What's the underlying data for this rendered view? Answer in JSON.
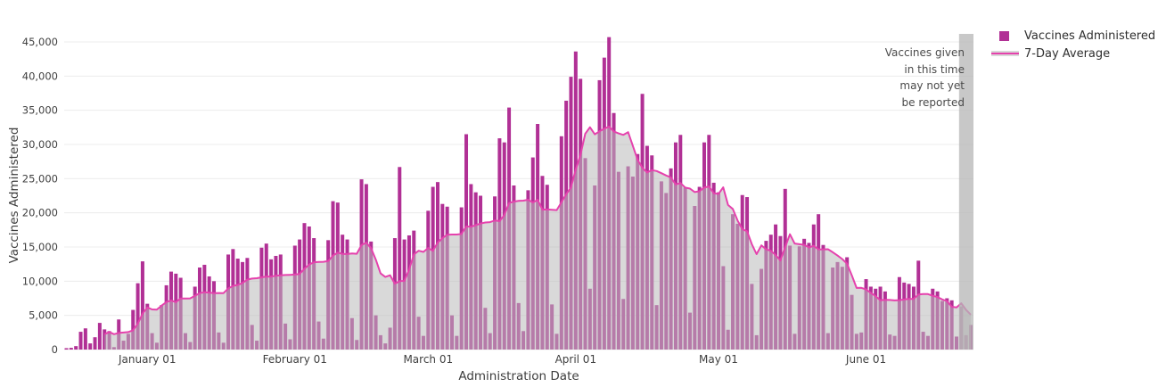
{
  "axes": {
    "x_title": "Administration Date",
    "y_title": "Vaccines Administered"
  },
  "legend": {
    "items": [
      {
        "label": "Vaccines Administered",
        "swatch": "square"
      },
      {
        "label": "7-Day Average",
        "swatch": "line"
      }
    ]
  },
  "annotation": {
    "lines": [
      "Vaccines given",
      "in this time",
      "may not yet",
      "be reported"
    ]
  },
  "chart_data": {
    "type": "bar",
    "title": "",
    "xlabel": "Administration Date",
    "ylabel": "Vaccines Administered",
    "ylim": [
      0,
      45000
    ],
    "grid": "horizontal",
    "legend_position": "top-right",
    "start_date": "2020-12-15",
    "end_date": "2021-06-23",
    "series": [
      {
        "name": "Vaccines Administered",
        "type": "bar",
        "color": "#b13095",
        "values": [
          200,
          250,
          500,
          2600,
          3100,
          900,
          1800,
          3900,
          2950,
          2700,
          350,
          4400,
          1300,
          2300,
          5800,
          9700,
          12900,
          6700,
          2400,
          1000,
          6500,
          9400,
          11400,
          11100,
          10500,
          2400,
          1100,
          9200,
          12000,
          12400,
          10700,
          10000,
          2500,
          1000,
          13900,
          14700,
          13300,
          12800,
          13400,
          3600,
          1300,
          14900,
          15500,
          13200,
          13700,
          13900,
          3800,
          1500,
          15200,
          16100,
          18500,
          18000,
          16300,
          4100,
          1600,
          16000,
          21700,
          21500,
          16800,
          16100,
          4600,
          1400,
          24900,
          24200,
          15800,
          5000,
          2100,
          900,
          3200,
          16300,
          26700,
          16100,
          16700,
          17400,
          4800,
          2000,
          20300,
          23800,
          24500,
          21300,
          20900,
          5000,
          2000,
          20800,
          31500,
          24200,
          23000,
          22500,
          6100,
          2400,
          22400,
          30900,
          30300,
          35400,
          24000,
          6800,
          2700,
          23300,
          28100,
          33000,
          25400,
          24100,
          6600,
          2300,
          31200,
          36400,
          39900,
          43600,
          39600,
          28000,
          8900,
          24000,
          39400,
          42700,
          45700,
          34600,
          26000,
          7400,
          26800,
          25300,
          28600,
          37400,
          29800,
          28400,
          6500,
          24600,
          22900,
          26500,
          30300,
          31400,
          23700,
          5400,
          21000,
          23800,
          30300,
          31400,
          24400,
          23000,
          12200,
          2900,
          19800,
          18400,
          22600,
          22300,
          9600,
          2100,
          11800,
          15900,
          16800,
          18300,
          16600,
          23500,
          15200,
          2300,
          15100,
          16200,
          15600,
          18300,
          19800,
          15300,
          2400,
          12000,
          12800,
          12100,
          13500,
          8000,
          2300,
          2500,
          10300,
          9200,
          8900,
          9200,
          8500,
          2200,
          2000,
          10600,
          9800,
          9600,
          9200,
          13000,
          2600,
          2000,
          8900,
          8500,
          7100,
          7500,
          7200,
          1900,
          6300,
          2100,
          3600
        ]
      },
      {
        "name": "7-Day Average",
        "type": "line",
        "derived": "trailing 7-day mean of Vaccines Administered",
        "window": 7,
        "color": "#e542ad",
        "area_color": "#bababa",
        "area_opacity": 0.55
      }
    ],
    "x_ticks": [
      {
        "date": "2021-01-01",
        "label": "January 01"
      },
      {
        "date": "2021-02-01",
        "label": "February 01"
      },
      {
        "date": "2021-03-01",
        "label": "March 01"
      },
      {
        "date": "2021-04-01",
        "label": "April 01"
      },
      {
        "date": "2021-05-01",
        "label": "May 01"
      },
      {
        "date": "2021-06-01",
        "label": "June 01"
      }
    ],
    "y_ticks": [
      {
        "value": 0,
        "label": "0"
      },
      {
        "value": 5000,
        "label": "5,000"
      },
      {
        "value": 10000,
        "label": "10,000"
      },
      {
        "value": 15000,
        "label": "15,000"
      },
      {
        "value": 20000,
        "label": "20,000"
      },
      {
        "value": 25000,
        "label": "25,000"
      },
      {
        "value": 30000,
        "label": "30,000"
      },
      {
        "value": 35000,
        "label": "35,000"
      },
      {
        "value": 40000,
        "label": "40,000"
      },
      {
        "value": 45000,
        "label": "45,000"
      }
    ],
    "unreported_window_days": 3,
    "unreported_band_color": "#b5b5b5",
    "unreported_band_opacity": 0.75,
    "grid_color": "#ececec",
    "tick_label_color": "#3f3f3f"
  }
}
